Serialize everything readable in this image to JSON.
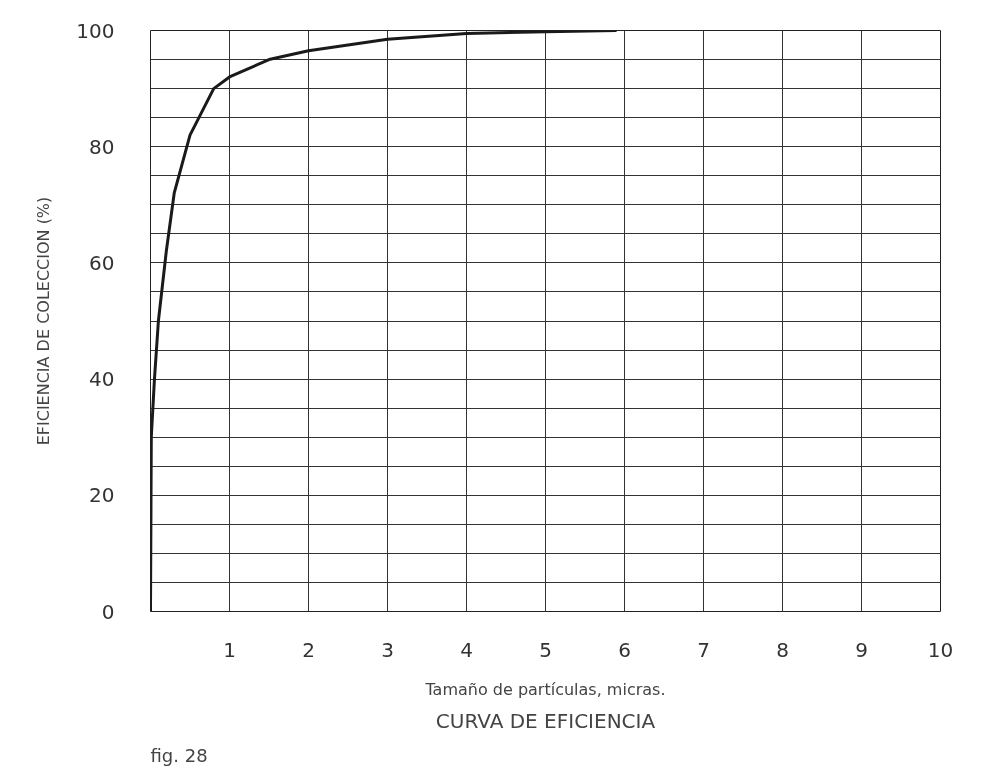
{
  "chart_data": {
    "type": "line",
    "title": "CURVA DE EFICIENCIA",
    "annotations": [
      "fig. 28"
    ],
    "xlabel": "Tamaño de partículas, micras.",
    "ylabel": "EFICIENCIA DE COLECCION (%)",
    "x": [
      0,
      0.01,
      0.05,
      0.1,
      0.2,
      0.3,
      0.5,
      0.8,
      1,
      1.5,
      2,
      3,
      4,
      5,
      5.9
    ],
    "series": [
      {
        "color": "#1a1a1a",
        "values": [
          0,
          30,
          40,
          50,
          62,
          72,
          82,
          90,
          92,
          95,
          96.5,
          98.5,
          99.5,
          99.8,
          100
        ]
      }
    ],
    "xlim": [
      0,
      10
    ],
    "xticks": [
      1,
      2,
      3,
      4,
      5,
      6,
      7,
      8,
      9,
      10
    ],
    "ylim": [
      0,
      100
    ],
    "yticks": [
      0,
      {
        "value": 5,
        "label": null
      },
      {
        "value": 10,
        "label": null
      },
      {
        "value": 15,
        "label": null
      },
      20,
      {
        "value": 25,
        "label": null
      },
      {
        "value": 30,
        "label": null
      },
      {
        "value": 35,
        "label": null
      },
      40,
      {
        "value": 45,
        "label": null
      },
      {
        "value": 50,
        "label": null
      },
      {
        "value": 55,
        "label": null
      },
      60,
      {
        "value": 65,
        "label": null
      },
      {
        "value": 70,
        "label": null
      },
      {
        "value": 75,
        "label": null
      },
      80,
      {
        "value": 85,
        "label": null
      },
      {
        "value": 90,
        "label": null
      },
      {
        "value": 95,
        "label": null
      },
      100
    ],
    "grid": true,
    "marker": "none",
    "line_style": "solid"
  }
}
